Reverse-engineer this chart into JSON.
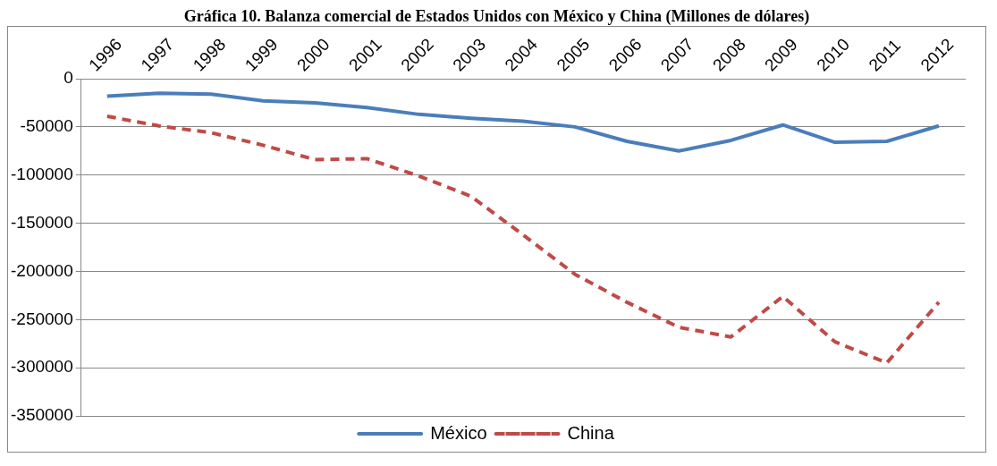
{
  "chart_data": {
    "type": "line",
    "title": "Gráfica 10. Balanza comercial de Estados Unidos con México y China (Millones de dólares)",
    "categories": [
      "1996",
      "1997",
      "1998",
      "1999",
      "2000",
      "2001",
      "2002",
      "2003",
      "2004",
      "2005",
      "2006",
      "2007",
      "2008",
      "2009",
      "2010",
      "2011",
      "2012"
    ],
    "series": [
      {
        "name": "México",
        "color": "#4a7ebb",
        "line_style": "solid",
        "values": [
          -18000,
          -15000,
          -16000,
          -23000,
          -25000,
          -30000,
          -37000,
          -41000,
          -44000,
          -50000,
          -65000,
          -75000,
          -64000,
          -48000,
          -66000,
          -65000,
          -49000
        ]
      },
      {
        "name": "China",
        "color": "#be4b48",
        "line_style": "dashed",
        "values": [
          -39000,
          -49000,
          -56000,
          -69000,
          -84000,
          -83000,
          -101000,
          -122000,
          -162000,
          -203000,
          -232000,
          -258000,
          -268000,
          -226000,
          -273000,
          -295000,
          -232000
        ]
      }
    ],
    "ylim": [
      -350000,
      0
    ],
    "yticks": [
      -350000,
      -300000,
      -250000,
      -200000,
      -150000,
      -100000,
      -50000,
      0
    ],
    "grid": "y",
    "legend": "bottom",
    "marker": "none"
  }
}
